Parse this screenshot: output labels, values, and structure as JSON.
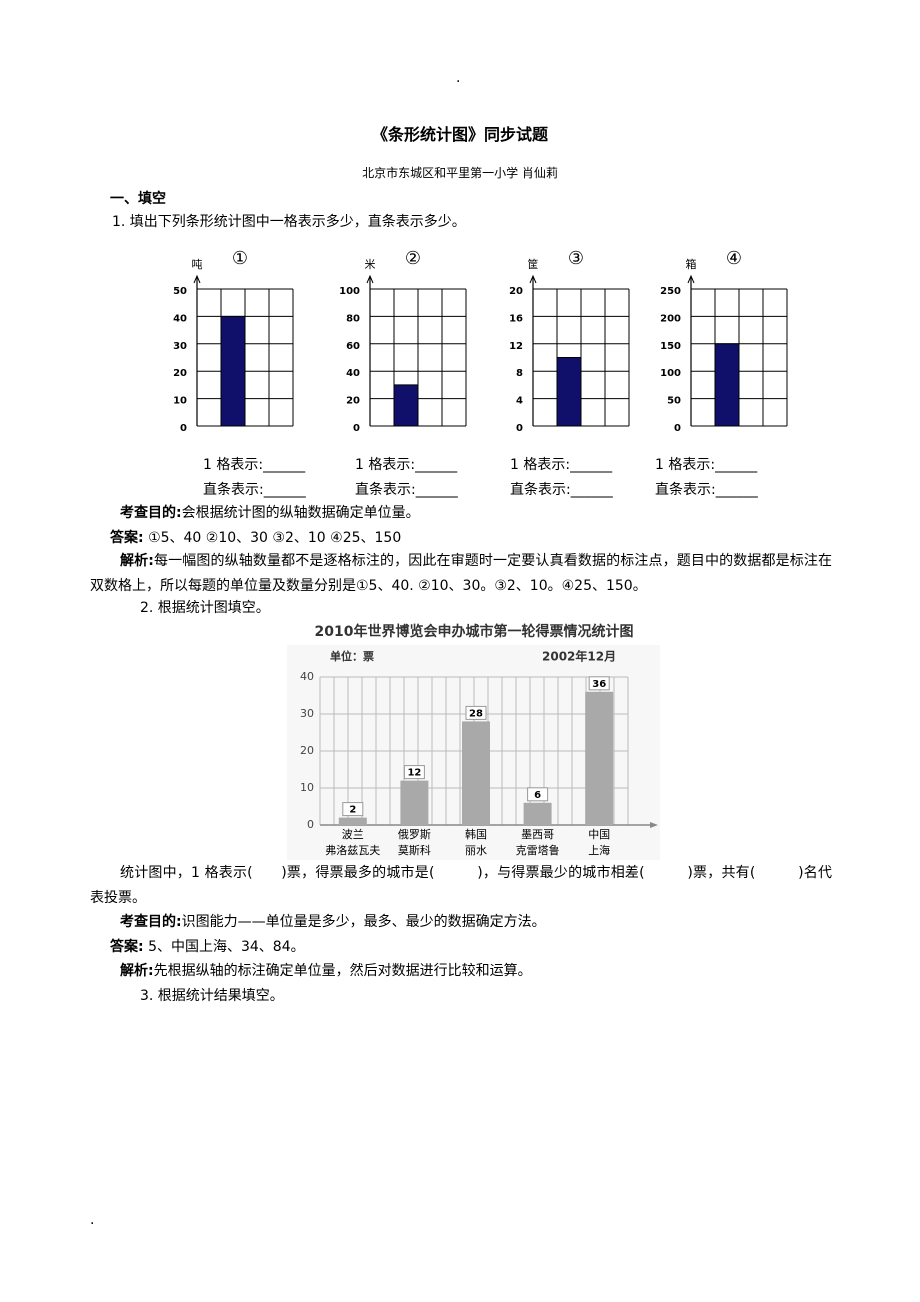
{
  "header_mark": ".",
  "title": "《条形统计图》同步试题",
  "author": "北京市东城区和平里第一小学  肖仙莉",
  "section": "一、填空",
  "q1": {
    "text": "1. 填出下列条形统计图中一格表示多少，直条表示多少。",
    "charts": [
      {
        "type": "bar",
        "unit": "吨",
        "number": "①",
        "ylim": [
          0,
          50
        ],
        "yticks": [
          0,
          10,
          20,
          30,
          40,
          50
        ],
        "values": [
          40
        ],
        "color": "#10106a"
      },
      {
        "type": "bar",
        "unit": "米",
        "number": "②",
        "ylim": [
          0,
          100
        ],
        "yticks": [
          0,
          20,
          40,
          60,
          80,
          100
        ],
        "values": [
          30
        ],
        "color": "#10106a"
      },
      {
        "type": "bar",
        "unit": "筐",
        "number": "③",
        "ylim": [
          0,
          20
        ],
        "yticks": [
          0,
          4,
          8,
          12,
          16,
          20
        ],
        "values": [
          10
        ],
        "color": "#10106a"
      },
      {
        "type": "bar",
        "unit": "箱",
        "number": "④",
        "ylim": [
          0,
          250
        ],
        "yticks": [
          0,
          50,
          100,
          150,
          200,
          250
        ],
        "values": [
          150
        ],
        "color": "#10106a"
      }
    ],
    "blanks": [
      {
        "cell": "1 格表示:______",
        "bar": "直条表示:______"
      },
      {
        "cell": "1 格表示:______",
        "bar": "直条表示:______"
      },
      {
        "cell": "1 格表示:______",
        "bar": "直条表示:______"
      },
      {
        "cell": "1 格表示:______",
        "bar": "直条表示:______"
      }
    ],
    "purpose_label": "考查目的:",
    "purpose": "会根据统计图的纵轴数据确定单位量。",
    "answer_label": "答案:",
    "answer": "①5、40  ②10、30  ③2、10  ④25、150",
    "analysis_label": "解析:",
    "analysis": "每一幅图的纵轴数量都不是逐格标注的，因此在审题时一定要认真看数据的标注点，题目中的数据都是标注在双数格上，所以每题的单位量及数量分别是①5、40. ②10、30。③2、10。④25、150。"
  },
  "q2": {
    "text": "2. 根据统计图填空。",
    "chart": {
      "type": "bar",
      "title": "2010年世界博览会申办城市第一轮得票情况统计图",
      "unit": "单位：票",
      "date": "2002年12月",
      "categories": [
        [
          "波兰",
          "弗洛兹瓦夫"
        ],
        [
          "俄罗斯",
          "莫斯科"
        ],
        [
          "韩国",
          "丽水"
        ],
        [
          "墨西哥",
          "克雷塔鲁"
        ],
        [
          "中国",
          "上海"
        ]
      ],
      "values": [
        2,
        12,
        28,
        6,
        36
      ],
      "color": "#a9a9a9",
      "ylim": [
        0,
        40
      ],
      "yticks": [
        0,
        10,
        20,
        30,
        40
      ],
      "grid": true
    },
    "question": "统计图中，1 格表示(　　)票，得票最多的城市是(　　　)，与得票最少的城市相差(　　　)票，共有(　　　)名代表投票。",
    "purpose_label": "考查目的:",
    "purpose": "识图能力——单位量是多少，最多、最少的数据确定方法。",
    "answer_label": "答案:",
    "answer": "5、中国上海、34、84。",
    "analysis_label": "解析:",
    "analysis": "先根据纵轴的标注确定单位量，然后对数据进行比较和运算。"
  },
  "q3": {
    "text": "3. 根据统计结果填空。"
  },
  "footer_mark": "."
}
